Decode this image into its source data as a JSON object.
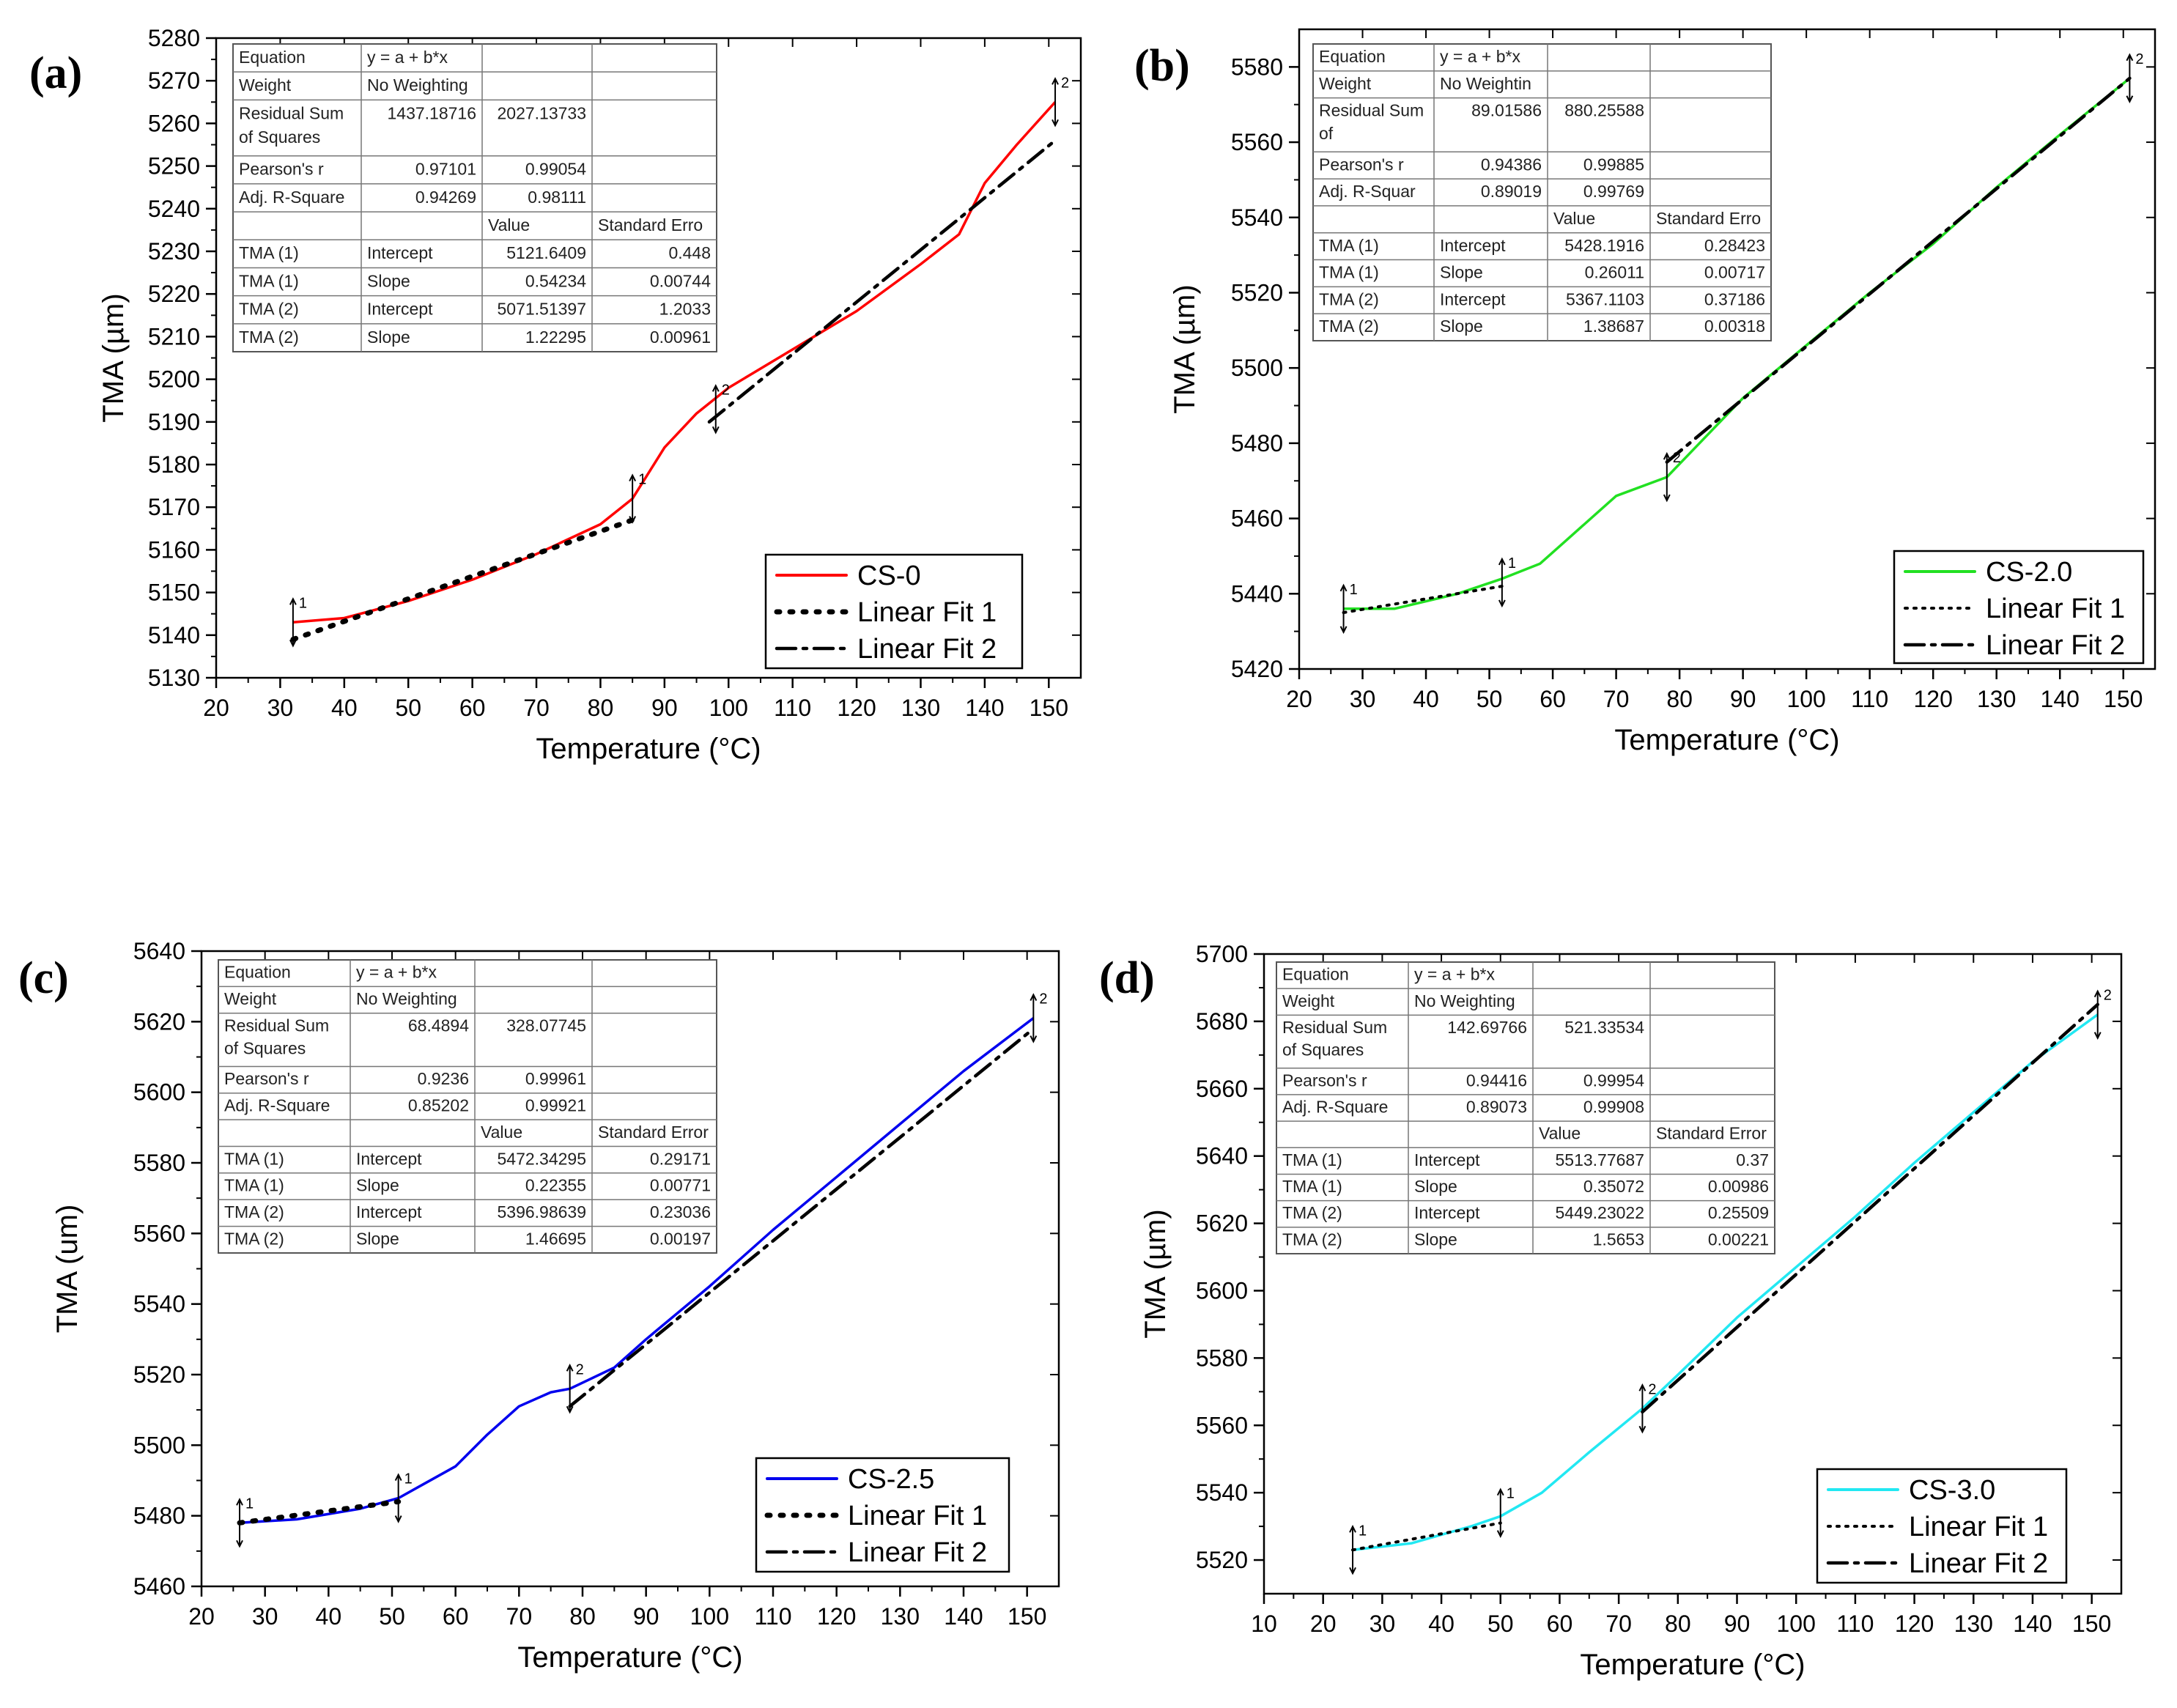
{
  "colors": {
    "a": "#ff0000",
    "b": "#22e022",
    "c": "#0000ee",
    "d": "#22e8f2",
    "fit": "#000000",
    "frame": "#000000"
  },
  "chart_data": [
    {
      "type": "line",
      "panel_label": "(a)",
      "xlabel": "Temperature (°C)",
      "ylabel": "TMA (µm)",
      "xlim": [
        20,
        155
      ],
      "ylim": [
        5130,
        5280
      ],
      "xticks": [
        20,
        30,
        40,
        50,
        60,
        70,
        80,
        90,
        100,
        110,
        120,
        130,
        140,
        150
      ],
      "yticks": [
        5130,
        5140,
        5150,
        5160,
        5170,
        5180,
        5190,
        5200,
        5210,
        5220,
        5230,
        5240,
        5250,
        5260,
        5270,
        5280
      ],
      "legend_placement": "bottom-right",
      "fit_style": [
        "dotted-bold",
        "dashdot"
      ],
      "series": [
        {
          "name": "CS-0",
          "x": [
            32,
            40,
            50,
            60,
            70,
            80,
            85,
            90,
            95,
            100,
            110,
            120,
            130,
            136,
            140,
            145,
            151
          ],
          "y": [
            5143,
            5144,
            5148,
            5153,
            5159,
            5166,
            5172,
            5184,
            5192,
            5198,
            5207,
            5216,
            5227,
            5234,
            5246,
            5255,
            5265
          ]
        },
        {
          "name": "Linear Fit 1",
          "x": [
            32,
            85
          ],
          "y": [
            5139,
            5167
          ]
        },
        {
          "name": "Linear Fit 2",
          "x": [
            97,
            151
          ],
          "y": [
            5190,
            5256
          ]
        }
      ],
      "markers": [
        {
          "x": 32,
          "y": 5143,
          "label": "1"
        },
        {
          "x": 85,
          "y": 5172,
          "label": "1"
        },
        {
          "x": 98,
          "y": 5193,
          "label": "2"
        },
        {
          "x": 151,
          "y": 5265,
          "label": "2"
        }
      ],
      "table": {
        "rows": [
          [
            "Equation",
            "y = a + b*x",
            "",
            ""
          ],
          [
            "Weight",
            "No Weighting",
            "",
            ""
          ],
          [
            "Residual Sum of Squares",
            "1437.18716",
            "2027.13733",
            ""
          ],
          [
            "Pearson's r",
            "0.97101",
            "0.99054",
            ""
          ],
          [
            "Adj. R-Square",
            "0.94269",
            "0.98111",
            ""
          ],
          [
            "",
            "",
            "Value",
            "Standard Erro"
          ],
          [
            "TMA (1)",
            "Intercept",
            "5121.6409",
            "0.448"
          ],
          [
            "TMA (1)",
            "Slope",
            "0.54234",
            "0.00744"
          ],
          [
            "TMA (2)",
            "Intercept",
            "5071.51397",
            "1.2033"
          ],
          [
            "TMA (2)",
            "Slope",
            "1.22295",
            "0.00961"
          ]
        ]
      }
    },
    {
      "type": "line",
      "panel_label": "(b)",
      "xlabel": "Temperature (°C)",
      "ylabel": "TMA (µm)",
      "xlim": [
        20,
        155
      ],
      "ylim": [
        5420,
        5590
      ],
      "xticks": [
        20,
        30,
        40,
        50,
        60,
        70,
        80,
        90,
        100,
        110,
        120,
        130,
        140,
        150
      ],
      "yticks": [
        5420,
        5440,
        5460,
        5480,
        5500,
        5520,
        5540,
        5560,
        5580
      ],
      "legend_placement": "bottom-right",
      "fit_style": [
        "dotted",
        "dashdot"
      ],
      "series": [
        {
          "name": "CS-2.0",
          "x": [
            27,
            35,
            45,
            52,
            58,
            62,
            70,
            78,
            82,
            90,
            100,
            110,
            120,
            130,
            140,
            151
          ],
          "y": [
            5436,
            5436,
            5440,
            5444,
            5448,
            5454,
            5466,
            5471,
            5478,
            5492,
            5506,
            5520,
            5533,
            5548,
            5562,
            5577
          ]
        },
        {
          "name": "Linear Fit 1",
          "x": [
            27,
            52
          ],
          "y": [
            5435,
            5442
          ]
        },
        {
          "name": "Linear Fit 2",
          "x": [
            78,
            151
          ],
          "y": [
            5475,
            5577
          ]
        }
      ],
      "markers": [
        {
          "x": 27,
          "y": 5436,
          "label": "1"
        },
        {
          "x": 52,
          "y": 5443,
          "label": "1"
        },
        {
          "x": 78,
          "y": 5471,
          "label": "2"
        },
        {
          "x": 151,
          "y": 5577,
          "label": "2"
        }
      ],
      "table": {
        "rows": [
          [
            "Equation",
            "y = a + b*x",
            "",
            ""
          ],
          [
            "Weight",
            "No Weightin",
            "",
            ""
          ],
          [
            "Residual Sum of",
            "89.01586",
            "880.25588",
            ""
          ],
          [
            "Pearson's r",
            "0.94386",
            "0.99885",
            ""
          ],
          [
            "Adj. R-Squar",
            "0.89019",
            "0.99769",
            ""
          ],
          [
            "",
            "",
            "Value",
            "Standard Erro"
          ],
          [
            "TMA (1)",
            "Intercept",
            "5428.1916",
            "0.28423"
          ],
          [
            "TMA (1)",
            "Slope",
            "0.26011",
            "0.00717"
          ],
          [
            "TMA (2)",
            "Intercept",
            "5367.1103",
            "0.37186"
          ],
          [
            "TMA (2)",
            "Slope",
            "1.38687",
            "0.00318"
          ]
        ]
      }
    },
    {
      "type": "line",
      "panel_label": "(c)",
      "xlabel": "Temperature (°C)",
      "ylabel": "TMA (um)",
      "xlim": [
        20,
        155
      ],
      "ylim": [
        5460,
        5640
      ],
      "xticks": [
        20,
        30,
        40,
        50,
        60,
        70,
        80,
        90,
        100,
        110,
        120,
        130,
        140,
        150
      ],
      "yticks": [
        5460,
        5480,
        5500,
        5520,
        5540,
        5560,
        5580,
        5600,
        5620,
        5640
      ],
      "legend_placement": "bottom-right",
      "fit_style": [
        "dotted-bold",
        "dashdot"
      ],
      "series": [
        {
          "name": "CS-2.5",
          "x": [
            26,
            35,
            45,
            51,
            55,
            60,
            65,
            70,
            75,
            78,
            85,
            90,
            100,
            110,
            120,
            130,
            140,
            151
          ],
          "y": [
            5478,
            5479,
            5482,
            5485,
            5489,
            5494,
            5503,
            5511,
            5515,
            5516,
            5522,
            5530,
            5545,
            5561,
            5576,
            5591,
            5606,
            5621
          ]
        },
        {
          "name": "Linear Fit 1",
          "x": [
            26,
            51
          ],
          "y": [
            5478,
            5484
          ]
        },
        {
          "name": "Linear Fit 2",
          "x": [
            78,
            151
          ],
          "y": [
            5511,
            5618
          ]
        }
      ],
      "markers": [
        {
          "x": 26,
          "y": 5478,
          "label": "1"
        },
        {
          "x": 51,
          "y": 5485,
          "label": "1"
        },
        {
          "x": 78,
          "y": 5516,
          "label": "2"
        },
        {
          "x": 151,
          "y": 5621,
          "label": "2"
        }
      ],
      "table": {
        "rows": [
          [
            "Equation",
            "y = a + b*x",
            "",
            ""
          ],
          [
            "Weight",
            "No Weighting",
            "",
            ""
          ],
          [
            "Residual Sum of Squares",
            "68.4894",
            "328.07745",
            ""
          ],
          [
            "Pearson's r",
            "0.9236",
            "0.99961",
            ""
          ],
          [
            "Adj. R-Square",
            "0.85202",
            "0.99921",
            ""
          ],
          [
            "",
            "",
            "Value",
            "Standard Error"
          ],
          [
            "TMA (1)",
            "Intercept",
            "5472.34295",
            "0.29171"
          ],
          [
            "TMA (1)",
            "Slope",
            "0.22355",
            "0.00771"
          ],
          [
            "TMA (2)",
            "Intercept",
            "5396.98639",
            "0.23036"
          ],
          [
            "TMA (2)",
            "Slope",
            "1.46695",
            "0.00197"
          ]
        ]
      }
    },
    {
      "type": "line",
      "panel_label": "(d)",
      "xlabel": "Temperature (°C)",
      "ylabel": "TMA (µm)",
      "xlim": [
        10,
        155
      ],
      "ylim": [
        5510,
        5700
      ],
      "xticks": [
        10,
        20,
        30,
        40,
        50,
        60,
        70,
        80,
        90,
        100,
        110,
        120,
        130,
        140,
        150
      ],
      "yticks": [
        5520,
        5540,
        5560,
        5580,
        5600,
        5620,
        5640,
        5660,
        5680,
        5700
      ],
      "legend_placement": "bottom-right",
      "fit_style": [
        "dotted",
        "dashdot"
      ],
      "series": [
        {
          "name": "CS-3.0",
          "x": [
            25,
            35,
            45,
            50,
            57,
            65,
            74,
            80,
            90,
            100,
            110,
            120,
            130,
            140,
            151
          ],
          "y": [
            5523,
            5525,
            5530,
            5533,
            5540,
            5552,
            5565,
            5575,
            5592,
            5607,
            5622,
            5638,
            5653,
            5668,
            5682
          ]
        },
        {
          "name": "Linear Fit 1",
          "x": [
            25,
            50
          ],
          "y": [
            5523,
            5531
          ]
        },
        {
          "name": "Linear Fit 2",
          "x": [
            74,
            151
          ],
          "y": [
            5564,
            5685
          ]
        }
      ],
      "markers": [
        {
          "x": 25,
          "y": 5523,
          "label": "1"
        },
        {
          "x": 50,
          "y": 5534,
          "label": "1"
        },
        {
          "x": 74,
          "y": 5565,
          "label": "2"
        },
        {
          "x": 151,
          "y": 5682,
          "label": "2"
        }
      ],
      "table": {
        "rows": [
          [
            "Equation",
            "y = a + b*x",
            "",
            ""
          ],
          [
            "Weight",
            "No Weighting",
            "",
            ""
          ],
          [
            "Residual Sum of Squares",
            "142.69766",
            "521.33534",
            ""
          ],
          [
            "Pearson's r",
            "0.94416",
            "0.99954",
            ""
          ],
          [
            "Adj. R-Square",
            "0.89073",
            "0.99908",
            ""
          ],
          [
            "",
            "",
            "Value",
            "Standard Error"
          ],
          [
            "TMA (1)",
            "Intercept",
            "5513.77687",
            "0.37"
          ],
          [
            "TMA (1)",
            "Slope",
            "0.35072",
            "0.00986"
          ],
          [
            "TMA (2)",
            "Intercept",
            "5449.23022",
            "0.25509"
          ],
          [
            "TMA (2)",
            "Slope",
            "1.5653",
            "0.00221"
          ]
        ]
      }
    }
  ]
}
